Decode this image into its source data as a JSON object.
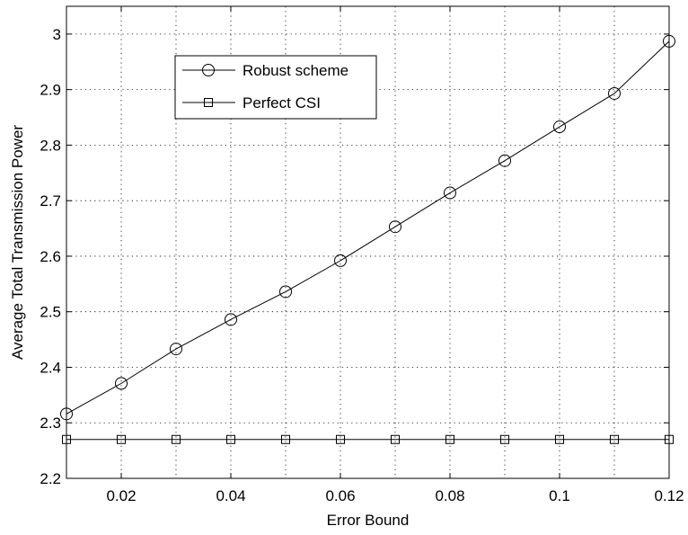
{
  "chart_data": {
    "type": "line",
    "xlabel": "Error Bound",
    "ylabel": "Average Total Transmission Power",
    "xlim": [
      0.01,
      0.12
    ],
    "ylim": [
      2.2,
      3.05
    ],
    "grid": true,
    "legend_position": "top-left",
    "x_ticks": [
      0.02,
      0.04,
      0.06,
      0.08,
      0.1,
      0.12
    ],
    "x_tick_labels": [
      "0.02",
      "0.04",
      "0.06",
      "0.08",
      "0.1",
      "0.12"
    ],
    "y_ticks": [
      2.2,
      2.3,
      2.4,
      2.5,
      2.6,
      2.7,
      2.8,
      2.9,
      3.0
    ],
    "y_tick_labels": [
      "2.2",
      "2.3",
      "2.4",
      "2.5",
      "2.6",
      "2.7",
      "2.8",
      "2.9",
      "3"
    ],
    "x_minor_grid": [
      0.03,
      0.05,
      0.07,
      0.09,
      0.11
    ],
    "x": [
      0.01,
      0.02,
      0.03,
      0.04,
      0.05,
      0.06,
      0.07,
      0.08,
      0.09,
      0.1,
      0.11,
      0.12
    ],
    "series": [
      {
        "name": "Robust scheme",
        "marker": "circle",
        "color": "#000000",
        "values": [
          2.316,
          2.371,
          2.433,
          2.486,
          2.536,
          2.592,
          2.653,
          2.714,
          2.772,
          2.833,
          2.893,
          2.987
        ]
      },
      {
        "name": "Perfect CSI",
        "marker": "square",
        "color": "#000000",
        "values": [
          2.27,
          2.27,
          2.27,
          2.27,
          2.27,
          2.27,
          2.27,
          2.27,
          2.27,
          2.27,
          2.27,
          2.27
        ]
      }
    ]
  }
}
